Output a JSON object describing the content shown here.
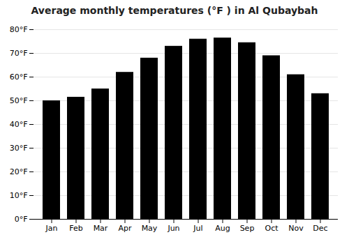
{
  "chart_data": {
    "type": "bar",
    "title": "Average monthly temperatures (°F ) in Al Qubaybah",
    "categories": [
      "Jan",
      "Feb",
      "Mar",
      "Apr",
      "May",
      "Jun",
      "Jul",
      "Aug",
      "Sep",
      "Oct",
      "Nov",
      "Dec"
    ],
    "values": [
      50,
      51.5,
      55,
      62,
      68,
      73,
      76,
      76.5,
      74.5,
      69,
      61,
      53
    ],
    "ylim": [
      0,
      80
    ],
    "yticks": [
      {
        "value": 0,
        "label": "0°F"
      },
      {
        "value": 10,
        "label": "10°F"
      },
      {
        "value": 20,
        "label": "20°F"
      },
      {
        "value": 30,
        "label": "30°F"
      },
      {
        "value": 40,
        "label": "40°F"
      },
      {
        "value": 50,
        "label": "50°F"
      },
      {
        "value": 60,
        "label": "60°F"
      },
      {
        "value": 70,
        "label": "70°F"
      },
      {
        "value": 80,
        "label": "80°F"
      }
    ],
    "grid": true
  }
}
